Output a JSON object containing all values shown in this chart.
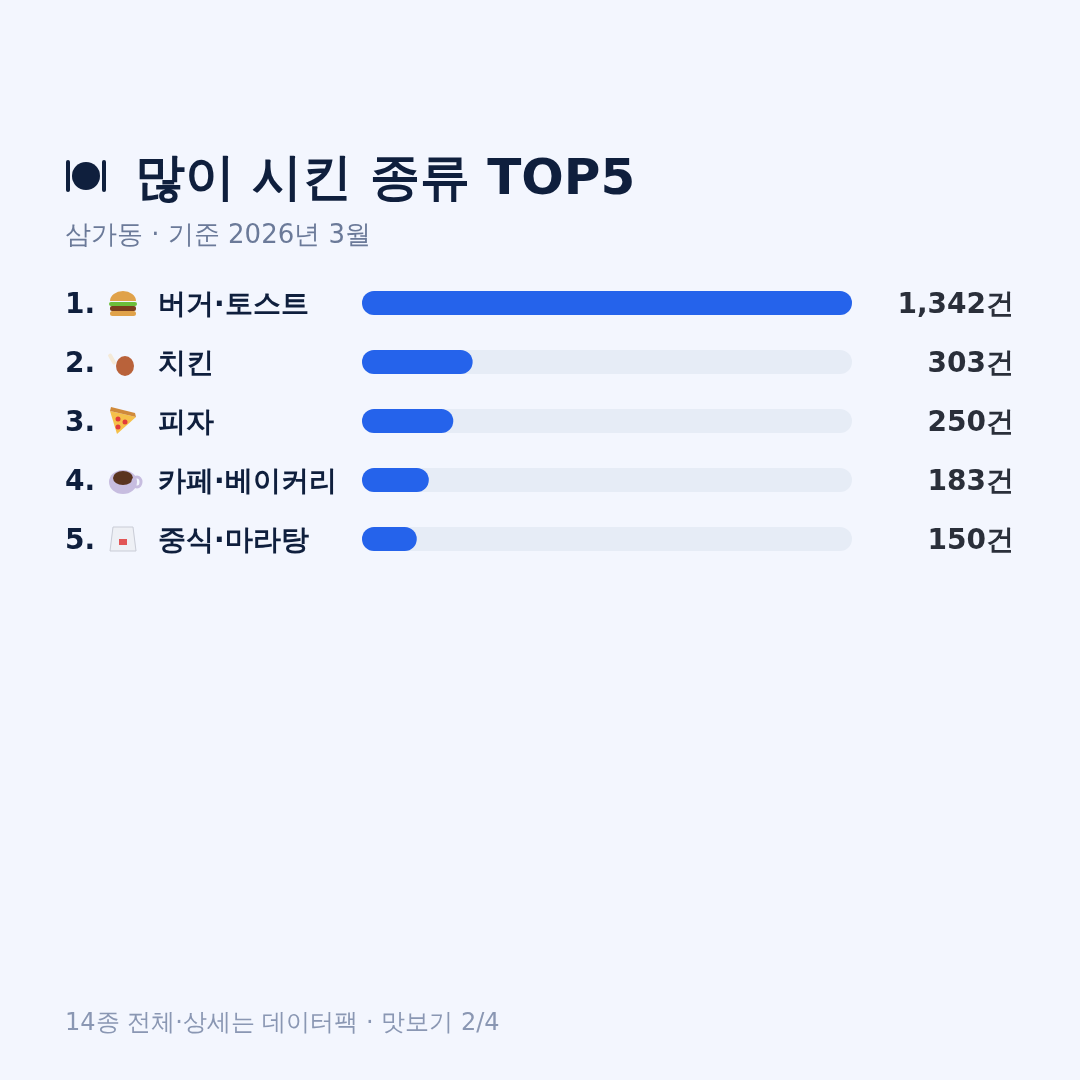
{
  "chart_data": {
    "type": "bar",
    "orientation": "horizontal",
    "title": "많이 시킨 종류 TOP5",
    "subtitle": "삼가동 · 기준 2026년 3월",
    "categories": [
      "1. 버거·토스트",
      "2. 치킨",
      "3. 피자",
      "4. 카페·베이커리",
      "5. 중식·마라탕"
    ],
    "values": [
      1342,
      303,
      250,
      183,
      150
    ],
    "value_labels": [
      "1,342건",
      "303건",
      "250건",
      "183건",
      "150건"
    ],
    "color": "#2563eb",
    "annotations": [
      "14종 전체·상세는 데이터팩 · 맛보기 2/4"
    ]
  }
}
